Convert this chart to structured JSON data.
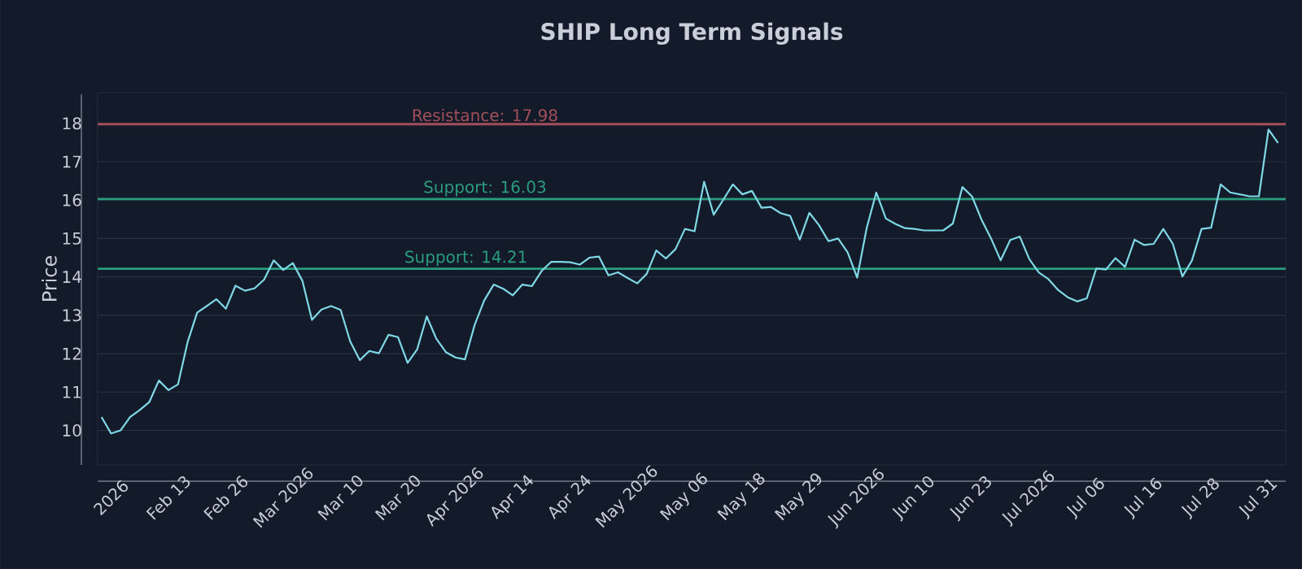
{
  "chart_data": {
    "type": "line",
    "title": "SHIP Long Term Signals",
    "ylabel": "Price",
    "categories": [
      null,
      "2026",
      null,
      null,
      null,
      null,
      null,
      "Feb 13",
      null,
      null,
      null,
      null,
      null,
      "Feb 26",
      null,
      null,
      null,
      null,
      null,
      "Mar 2026",
      null,
      null,
      null,
      null,
      null,
      "Mar 10",
      null,
      null,
      null,
      null,
      null,
      "Mar 20",
      null,
      null,
      null,
      null,
      null,
      "Apr 2026",
      null,
      null,
      null,
      null,
      null,
      "Apr 14",
      null,
      null,
      null,
      null,
      null,
      "Apr 24",
      null,
      null,
      null,
      null,
      null,
      "May 2026",
      null,
      null,
      null,
      null,
      null,
      "May 06",
      null,
      null,
      null,
      null,
      null,
      "May 18",
      null,
      null,
      null,
      null,
      null,
      "May 29",
      null,
      null,
      null,
      null,
      null,
      "Jun 2026",
      null,
      null,
      null,
      null,
      null,
      "Jun 10",
      null,
      null,
      null,
      null,
      null,
      "Jun 23",
      null,
      null,
      null,
      null,
      null,
      "Jul 2026",
      null,
      null,
      null,
      null,
      null,
      "Jul 06",
      null,
      null,
      null,
      null,
      null,
      "Jul 16",
      null,
      null,
      null,
      null,
      null,
      "Jul 28",
      null,
      null,
      null,
      null,
      null,
      "Jul 31",
      null,
      null
    ],
    "series": [
      {
        "color": "#7fd8e6",
        "values": [
          10.35,
          9.92,
          10.0,
          10.35,
          10.53,
          10.74,
          11.3,
          11.05,
          11.2,
          12.3,
          13.07,
          13.24,
          13.42,
          13.17,
          13.77,
          13.64,
          13.7,
          13.93,
          14.43,
          14.18,
          14.36,
          13.9,
          12.88,
          13.15,
          13.24,
          13.14,
          12.32,
          11.83,
          12.07,
          12.01,
          12.49,
          12.43,
          11.76,
          12.11,
          12.97,
          12.39,
          12.04,
          11.9,
          11.85,
          12.74,
          13.38,
          13.8,
          13.69,
          13.52,
          13.8,
          13.76,
          14.15,
          14.39,
          14.39,
          14.38,
          14.32,
          14.5,
          14.53,
          14.04,
          14.12,
          13.97,
          13.83,
          14.08,
          14.69,
          14.48,
          14.72,
          15.25,
          15.19,
          16.48,
          15.62,
          16.01,
          16.41,
          16.15,
          16.24,
          15.8,
          15.82,
          15.66,
          15.59,
          14.97,
          15.67,
          15.35,
          14.93,
          15.0,
          14.64,
          13.98,
          15.28,
          16.2,
          15.52,
          15.38,
          15.27,
          15.25,
          15.21,
          15.21,
          15.21,
          15.39,
          16.34,
          16.1,
          15.49,
          15.0,
          14.43,
          14.96,
          15.05,
          14.46,
          14.11,
          13.94,
          13.66,
          13.47,
          13.36,
          13.44,
          14.22,
          14.19,
          14.49,
          14.26,
          14.97,
          14.83,
          14.86,
          15.25,
          14.86,
          14.01,
          14.43,
          15.25,
          15.28,
          16.41,
          16.2,
          16.15,
          16.1,
          16.1,
          17.84,
          17.49
        ]
      }
    ],
    "ylim": [
      9.1,
      18.8
    ],
    "yticks": [
      10,
      11,
      12,
      13,
      14,
      15,
      16,
      17,
      18
    ],
    "grid": "y",
    "marker": "none",
    "line_style": "solid",
    "ref_lines": [
      {
        "axis": "y",
        "value": 17.98,
        "label": "Resistance: 17.98",
        "color": "#a34f5a"
      },
      {
        "axis": "y",
        "value": 16.03,
        "label": "Support: 16.03",
        "color": "#2a9c7e"
      },
      {
        "axis": "y",
        "value": 14.21,
        "label": "Support: 14.21",
        "color": "#2a9c7e"
      }
    ]
  }
}
